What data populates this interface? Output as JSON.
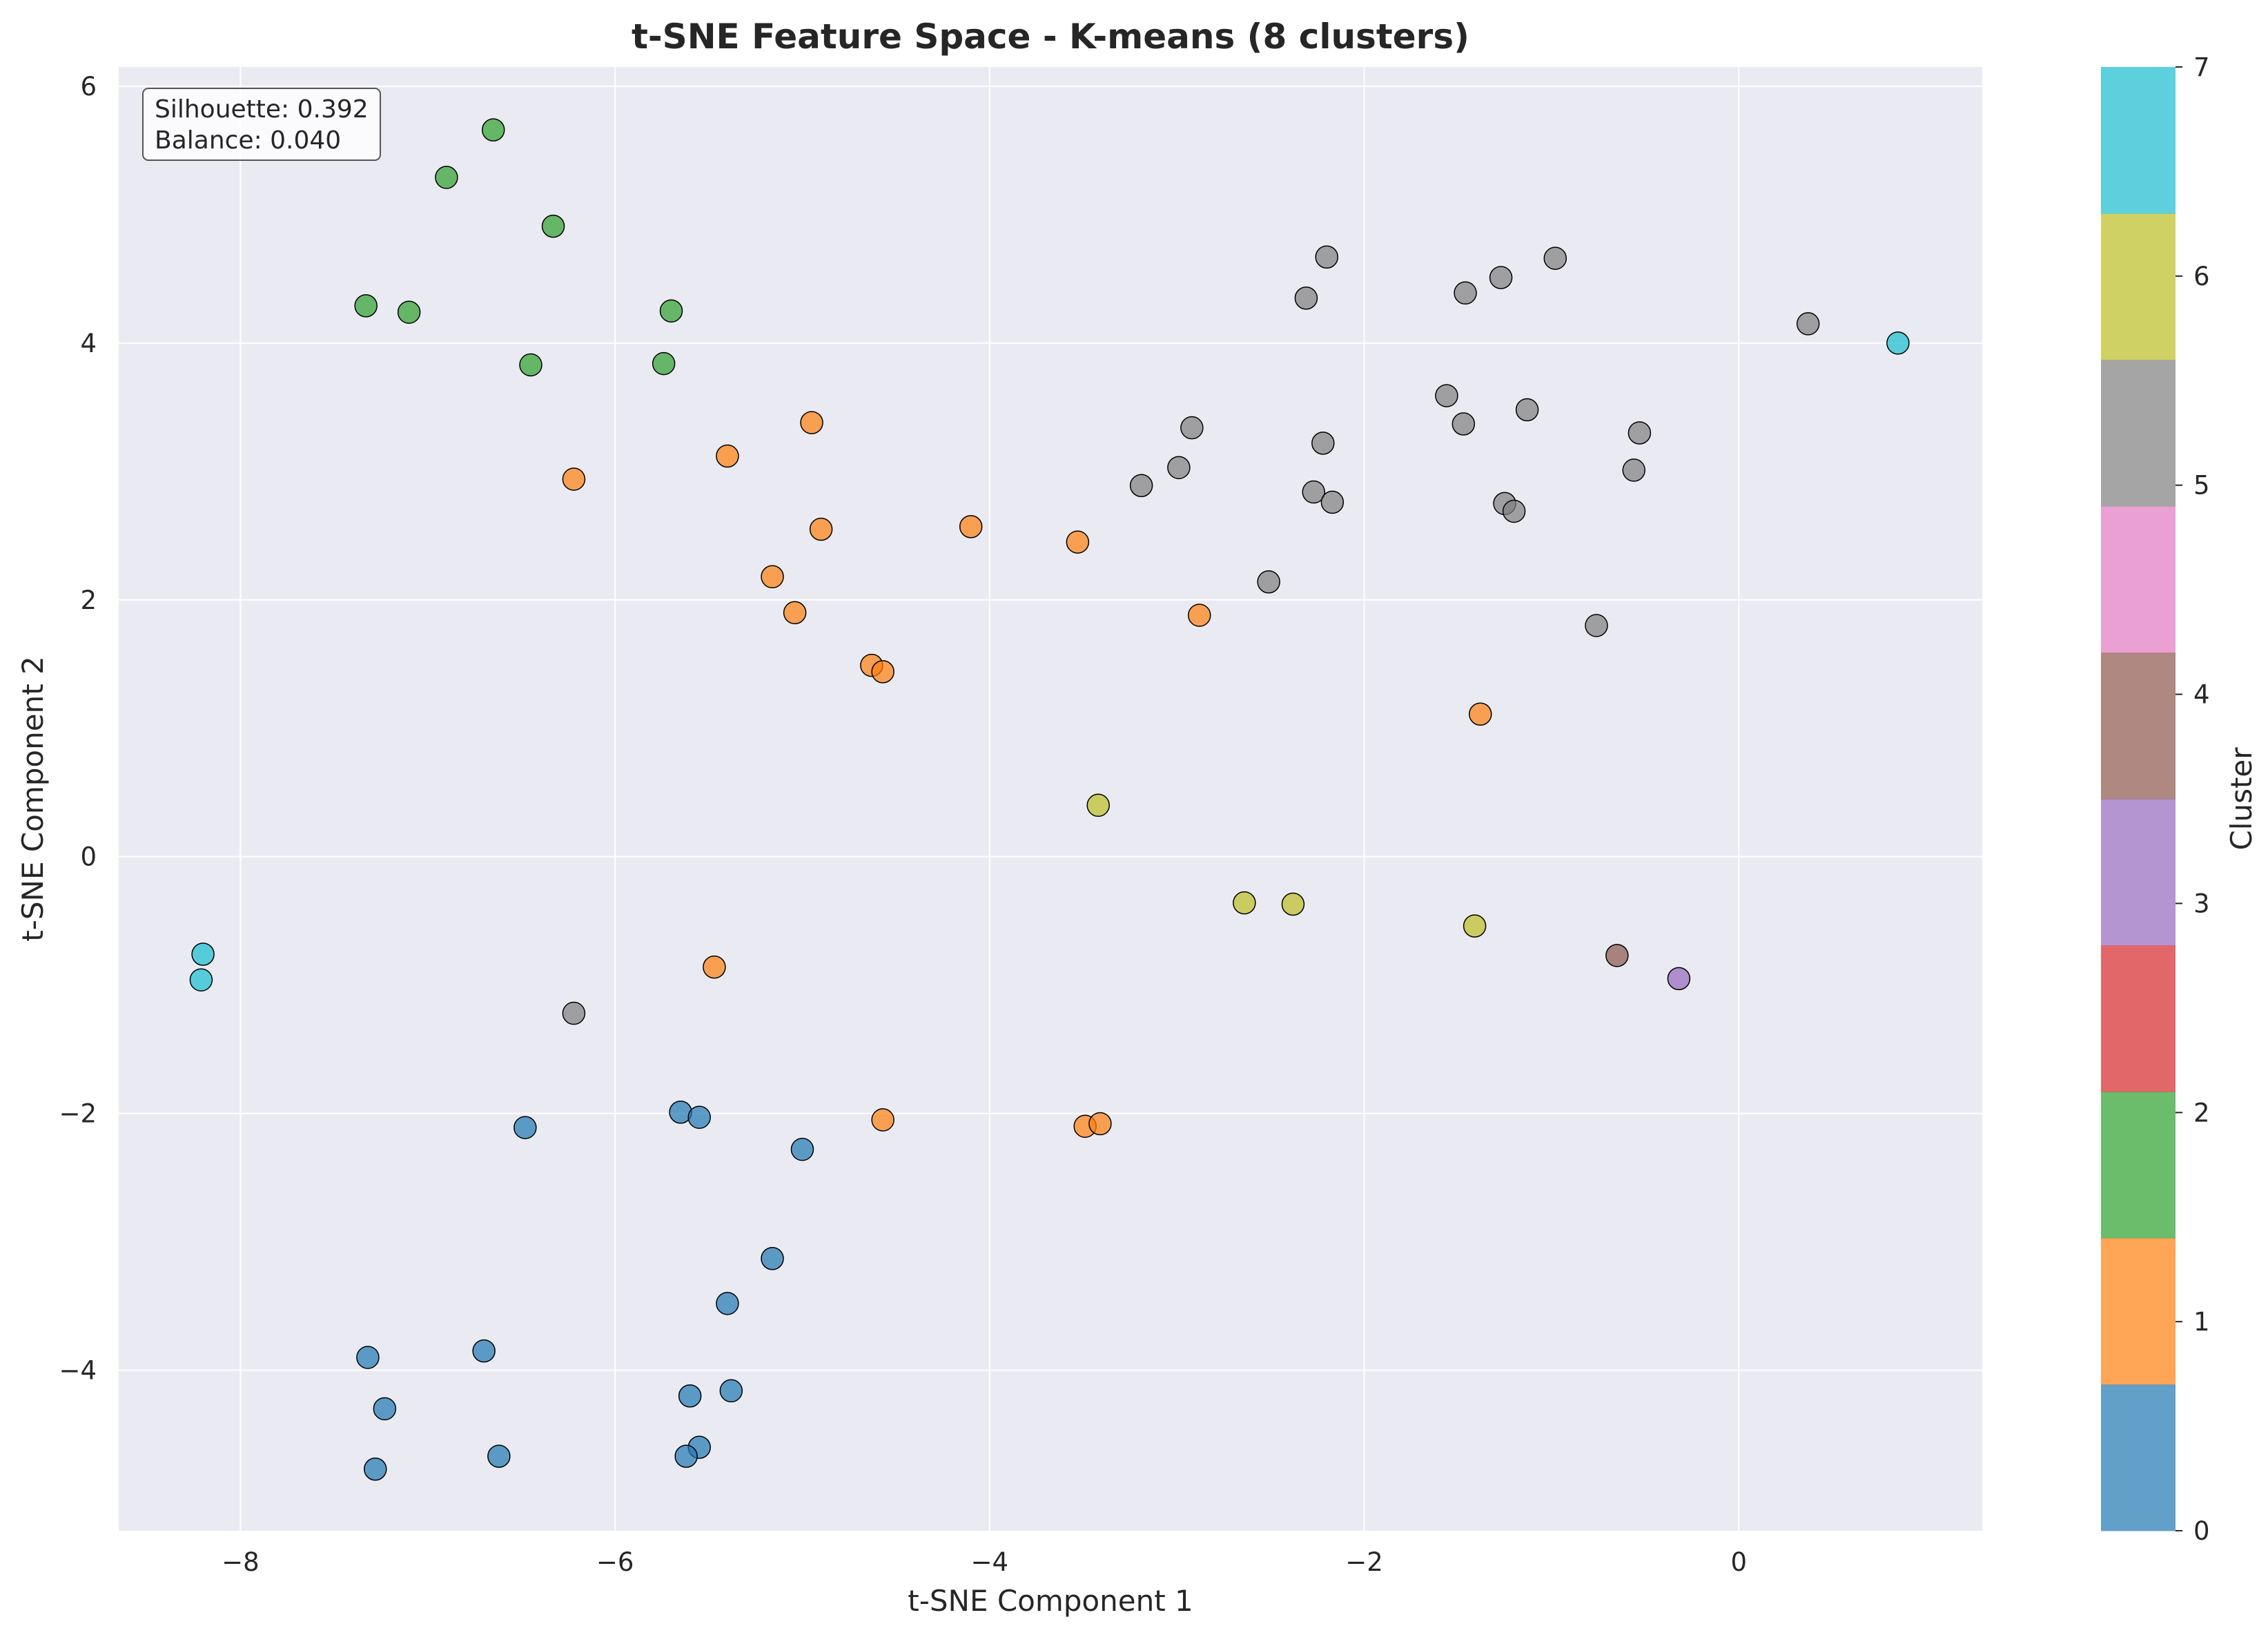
{
  "chart_data": {
    "type": "scatter",
    "title": "t-SNE Feature Space - K-means (8 clusters)",
    "xlabel": "t-SNE Component 1",
    "ylabel": "t-SNE Component 2",
    "xlim": [
      -8.65,
      1.3
    ],
    "ylim": [
      -5.25,
      6.15
    ],
    "xticks": [
      -8,
      -6,
      -4,
      -2,
      0
    ],
    "yticks": [
      -4,
      -2,
      0,
      2,
      4,
      6
    ],
    "grid": true,
    "annotation": [
      "Silhouette: 0.392",
      "Balance: 0.040"
    ],
    "colorbar": {
      "label": "Cluster",
      "ticks": [
        0,
        1,
        2,
        3,
        4,
        5,
        6,
        7
      ],
      "colors": [
        "#1f77b4",
        "#ff7f0e",
        "#2ca02c",
        "#d62728",
        "#9467bd",
        "#8c564b",
        "#e377c2",
        "#7f7f7f",
        "#bcbd22",
        "#17becf"
      ]
    },
    "series": [
      {
        "cluster": 0,
        "points": [
          [
            -6.48,
            -2.11
          ],
          [
            -5.65,
            -1.99
          ],
          [
            -5.55,
            -2.03
          ],
          [
            -5.0,
            -2.28
          ],
          [
            -5.16,
            -3.13
          ],
          [
            -5.4,
            -3.48
          ],
          [
            -6.7,
            -3.85
          ],
          [
            -7.32,
            -3.9
          ],
          [
            -7.23,
            -4.3
          ],
          [
            -7.28,
            -4.77
          ],
          [
            -6.62,
            -4.67
          ],
          [
            -5.6,
            -4.2
          ],
          [
            -5.38,
            -4.16
          ],
          [
            -5.55,
            -4.6
          ],
          [
            -5.62,
            -4.67
          ]
        ]
      },
      {
        "cluster": 1,
        "points": [
          [
            -6.22,
            2.94
          ],
          [
            -5.4,
            3.12
          ],
          [
            -4.95,
            3.38
          ],
          [
            -4.9,
            2.55
          ],
          [
            -4.1,
            2.57
          ],
          [
            -3.53,
            2.45
          ],
          [
            -5.16,
            2.18
          ],
          [
            -5.04,
            1.9
          ],
          [
            -2.88,
            1.88
          ],
          [
            -4.63,
            1.49
          ],
          [
            -4.57,
            1.44
          ],
          [
            -1.38,
            1.11
          ],
          [
            -5.47,
            -0.86
          ],
          [
            -4.57,
            -2.05
          ],
          [
            -3.49,
            -2.1
          ],
          [
            -3.41,
            -2.08
          ]
        ]
      },
      {
        "cluster": 2,
        "points": [
          [
            -6.65,
            5.66
          ],
          [
            -6.9,
            5.29
          ],
          [
            -6.33,
            4.91
          ],
          [
            -7.33,
            4.29
          ],
          [
            -7.1,
            4.24
          ],
          [
            -5.7,
            4.25
          ],
          [
            -6.45,
            3.83
          ],
          [
            -5.74,
            3.84
          ]
        ]
      },
      {
        "cluster": 3,
        "points": [
          [
            -0.32,
            -0.95
          ]
        ]
      },
      {
        "cluster": 4,
        "points": [
          [
            -0.65,
            -0.77
          ]
        ]
      },
      {
        "cluster": 5,
        "points": [
          [
            -2.2,
            4.67
          ],
          [
            -2.31,
            4.35
          ],
          [
            -1.27,
            4.51
          ],
          [
            -1.46,
            4.39
          ],
          [
            -0.98,
            4.66
          ],
          [
            0.37,
            4.15
          ],
          [
            -1.56,
            3.59
          ],
          [
            -1.47,
            3.37
          ],
          [
            -1.13,
            3.48
          ],
          [
            -0.53,
            3.3
          ],
          [
            -0.56,
            3.01
          ],
          [
            -2.92,
            3.34
          ],
          [
            -2.22,
            3.22
          ],
          [
            -2.99,
            3.03
          ],
          [
            -3.19,
            2.89
          ],
          [
            -2.27,
            2.84
          ],
          [
            -2.17,
            2.76
          ],
          [
            -1.25,
            2.75
          ],
          [
            -1.2,
            2.69
          ],
          [
            -2.51,
            2.14
          ],
          [
            -0.76,
            1.8
          ],
          [
            -6.22,
            -1.22
          ]
        ]
      },
      {
        "cluster": 6,
        "points": [
          [
            -3.42,
            0.4
          ],
          [
            -2.64,
            -0.36
          ],
          [
            -2.38,
            -0.37
          ],
          [
            -1.41,
            -0.54
          ]
        ]
      },
      {
        "cluster": 7,
        "points": [
          [
            -8.2,
            -0.76
          ],
          [
            -8.21,
            -0.96
          ],
          [
            0.85,
            4.0
          ]
        ]
      }
    ]
  }
}
